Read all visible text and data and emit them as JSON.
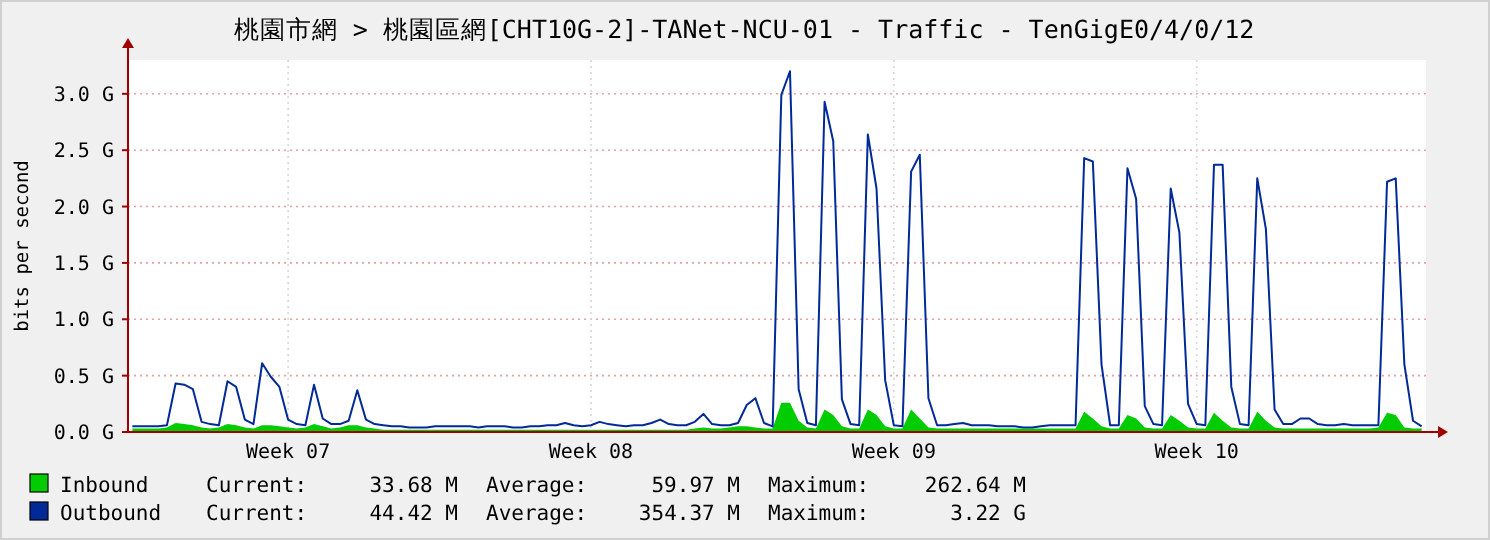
{
  "chart_data": {
    "type": "line",
    "title": "桃園市網 > 桃園區網[CHT10G-2]-TANet-NCU-01 - Traffic - TenGigE0/4/0/12",
    "ylabel": "bits per second",
    "categories": [
      null,
      null,
      null,
      null,
      null,
      null,
      null,
      null,
      null,
      null,
      null,
      null,
      null,
      null,
      null,
      null,
      null,
      null,
      "Week 07",
      null,
      null,
      null,
      null,
      null,
      null,
      null,
      null,
      null,
      null,
      null,
      null,
      null,
      null,
      null,
      null,
      null,
      null,
      null,
      null,
      null,
      null,
      null,
      null,
      null,
      null,
      null,
      null,
      null,
      null,
      null,
      null,
      null,
      null,
      "Week 08",
      null,
      null,
      null,
      null,
      null,
      null,
      null,
      null,
      null,
      null,
      null,
      null,
      null,
      null,
      null,
      null,
      null,
      null,
      null,
      null,
      null,
      null,
      null,
      null,
      null,
      null,
      null,
      null,
      null,
      null,
      null,
      null,
      null,
      null,
      "Week 09",
      null,
      null,
      null,
      null,
      null,
      null,
      null,
      null,
      null,
      null,
      null,
      null,
      null,
      null,
      null,
      null,
      null,
      null,
      null,
      null,
      null,
      null,
      null,
      null,
      null,
      null,
      null,
      null,
      null,
      null,
      null,
      null,
      null,
      null,
      "Week 10",
      null,
      null,
      null,
      null,
      null,
      null,
      null,
      null,
      null,
      null,
      null,
      null,
      null,
      null,
      null,
      null,
      null,
      null,
      null,
      null,
      null,
      null,
      null,
      null,
      null,
      null
    ],
    "ylim": [
      0,
      3.3
    ],
    "yticks": [
      {
        "value": 0,
        "label": "0.0 G"
      },
      {
        "value": 0.5,
        "label": "0.5 G"
      },
      {
        "value": 1,
        "label": "1.0 G"
      },
      {
        "value": 1.5,
        "label": "1.5 G"
      },
      {
        "value": 2,
        "label": "2.0 G"
      },
      {
        "value": 2.5,
        "label": "2.5 G"
      },
      {
        "value": 3,
        "label": "3.0 G"
      }
    ],
    "grid": true,
    "legend": "bottom",
    "series": [
      {
        "name": "Inbound",
        "type": "area",
        "color": "#00cc00",
        "values": [
          0.03,
          0.03,
          0.03,
          0.03,
          0.04,
          0.08,
          0.07,
          0.06,
          0.04,
          0.03,
          0.04,
          0.07,
          0.06,
          0.04,
          0.03,
          0.06,
          0.06,
          0.05,
          0.04,
          0.03,
          0.04,
          0.07,
          0.05,
          0.03,
          0.04,
          0.06,
          0.06,
          0.04,
          0.03,
          0.02,
          0.02,
          0.02,
          0.02,
          0.02,
          0.02,
          0.02,
          0.02,
          0.02,
          0.02,
          0.02,
          0.02,
          0.02,
          0.02,
          0.02,
          0.02,
          0.02,
          0.02,
          0.02,
          0.02,
          0.02,
          0.02,
          0.02,
          0.02,
          0.02,
          0.02,
          0.02,
          0.02,
          0.02,
          0.02,
          0.02,
          0.02,
          0.02,
          0.02,
          0.02,
          0.02,
          0.03,
          0.04,
          0.03,
          0.03,
          0.04,
          0.05,
          0.05,
          0.04,
          0.03,
          0.03,
          0.26,
          0.26,
          0.1,
          0.04,
          0.03,
          0.2,
          0.15,
          0.05,
          0.03,
          0.03,
          0.2,
          0.15,
          0.05,
          0.03,
          0.03,
          0.2,
          0.12,
          0.04,
          0.03,
          0.03,
          0.03,
          0.03,
          0.03,
          0.03,
          0.03,
          0.03,
          0.03,
          0.03,
          0.03,
          0.03,
          0.03,
          0.03,
          0.03,
          0.03,
          0.03,
          0.18,
          0.12,
          0.05,
          0.03,
          0.03,
          0.15,
          0.12,
          0.04,
          0.03,
          0.03,
          0.15,
          0.1,
          0.04,
          0.03,
          0.03,
          0.17,
          0.1,
          0.04,
          0.03,
          0.03,
          0.18,
          0.1,
          0.04,
          0.03,
          0.03,
          0.03,
          0.03,
          0.03,
          0.03,
          0.03,
          0.03,
          0.03,
          0.03,
          0.03,
          0.04,
          0.17,
          0.15,
          0.04,
          0.03,
          0.03
        ]
      },
      {
        "name": "Outbound",
        "color": "#002a97",
        "values": [
          0.05,
          0.05,
          0.05,
          0.05,
          0.06,
          0.43,
          0.42,
          0.38,
          0.09,
          0.07,
          0.06,
          0.45,
          0.4,
          0.11,
          0.07,
          0.61,
          0.49,
          0.4,
          0.11,
          0.07,
          0.06,
          0.42,
          0.12,
          0.07,
          0.07,
          0.1,
          0.37,
          0.11,
          0.07,
          0.06,
          0.05,
          0.05,
          0.04,
          0.04,
          0.04,
          0.05,
          0.05,
          0.05,
          0.05,
          0.05,
          0.04,
          0.05,
          0.05,
          0.05,
          0.04,
          0.04,
          0.05,
          0.05,
          0.06,
          0.06,
          0.08,
          0.06,
          0.05,
          0.06,
          0.09,
          0.07,
          0.06,
          0.05,
          0.06,
          0.06,
          0.08,
          0.11,
          0.07,
          0.06,
          0.06,
          0.09,
          0.16,
          0.07,
          0.06,
          0.06,
          0.08,
          0.24,
          0.3,
          0.08,
          0.05,
          2.99,
          3.2,
          0.38,
          0.08,
          0.06,
          2.93,
          2.58,
          0.29,
          0.07,
          0.06,
          2.64,
          2.16,
          0.46,
          0.06,
          0.05,
          2.31,
          2.46,
          0.3,
          0.06,
          0.06,
          0.07,
          0.08,
          0.06,
          0.06,
          0.06,
          0.05,
          0.05,
          0.05,
          0.04,
          0.04,
          0.05,
          0.06,
          0.06,
          0.06,
          0.06,
          2.43,
          2.4,
          0.6,
          0.06,
          0.06,
          2.34,
          2.07,
          0.23,
          0.07,
          0.06,
          2.16,
          1.77,
          0.25,
          0.07,
          0.06,
          2.37,
          2.37,
          0.4,
          0.07,
          0.06,
          2.25,
          1.8,
          0.2,
          0.07,
          0.07,
          0.12,
          0.12,
          0.07,
          0.06,
          0.06,
          0.07,
          0.06,
          0.06,
          0.06,
          0.06,
          2.22,
          2.25,
          0.6,
          0.1,
          0.05
        ]
      }
    ],
    "annotations": [
      "Current:",
      "33.68 M",
      "Average:",
      "59.97 M",
      "Maximum:",
      "262.64 M",
      "Current:",
      "44.42 M",
      "Average:",
      "354.37 M",
      "Maximum:",
      "3.22 G"
    ]
  }
}
